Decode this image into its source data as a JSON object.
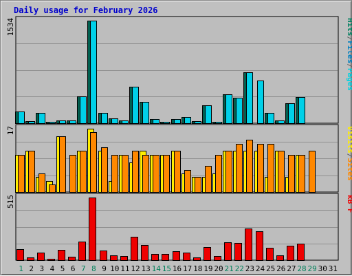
{
  "title": "Daily usage for February 2026",
  "colors": {
    "background": "#c0c0c0",
    "plot": "#bdbdbd",
    "grid": "#909090",
    "title": "#0000cc",
    "hits": "#00cccc",
    "files": "#00a0a0",
    "pages": "#006050",
    "visits": "#ffff00",
    "sites": "#ff8800",
    "kbf": "#ff0000",
    "weekend_label": "#00805a"
  },
  "chart_data": {
    "type": "bar",
    "days": [
      "1",
      "2",
      "3",
      "4",
      "5",
      "6",
      "7",
      "8",
      "9",
      "10",
      "11",
      "12",
      "13",
      "14",
      "15",
      "16",
      "17",
      "18",
      "19",
      "20",
      "21",
      "22",
      "23",
      "24",
      "25",
      "26",
      "27",
      "28",
      "29",
      "30",
      "31"
    ],
    "weekend_days": [
      "1",
      "7",
      "8",
      "14",
      "15",
      "21",
      "22",
      "28",
      "29"
    ],
    "panels": [
      {
        "id": "hits",
        "max_label": "1534",
        "ymax": 1534,
        "legend": [
          "Pages",
          "/",
          "Files",
          "/",
          "Hits"
        ],
        "legend_colors": [
          "#00d0e0",
          "#606060",
          "#0080c0",
          "#606060",
          "#008060"
        ],
        "series": [
          {
            "name": "Pages",
            "values": [
              180,
              30,
              150,
              10,
              40,
              40,
              400,
              1534,
              150,
              70,
              40,
              550,
              320,
              60,
              20,
              60,
              90,
              30,
              270,
              20,
              430,
              380,
              760,
              0,
              150,
              40,
              300,
              390,
              0,
              0,
              0
            ]
          },
          {
            "name": "Hits",
            "values": [
              180,
              30,
              150,
              10,
              40,
              40,
              400,
              1534,
              150,
              70,
              40,
              550,
              320,
              60,
              20,
              60,
              90,
              30,
              270,
              20,
              430,
              380,
              760,
              640,
              150,
              40,
              300,
              390,
              0,
              0,
              0
            ]
          }
        ]
      },
      {
        "id": "visits",
        "max_label": "17",
        "ymax": 17,
        "legend": [
          "Sites",
          "/",
          "Visits"
        ],
        "legend_colors": [
          "#ff8800",
          "#606060",
          "#ffee00"
        ],
        "series": [
          {
            "name": "Visits",
            "values": [
              10,
              11,
              4,
              3,
              15,
              0,
              11,
              17,
              11,
              3,
              10,
              8,
              11,
              10,
              10,
              11,
              5,
              4,
              4,
              5,
              11,
              11,
              11,
              11,
              4,
              11,
              4,
              10,
              0,
              0,
              0
            ]
          },
          {
            "name": "Sites",
            "values": [
              10,
              11,
              5,
              2,
              15,
              10,
              11,
              16,
              12,
              10,
              10,
              11,
              10,
              10,
              10,
              11,
              6,
              4,
              7,
              10,
              11,
              13,
              14,
              13,
              13,
              11,
              10,
              10,
              11,
              0,
              0
            ]
          }
        ]
      },
      {
        "id": "kbf",
        "max_label": "515",
        "ymax": 515,
        "legend": [
          "kB F"
        ],
        "legend_colors": [
          "#ee0000"
        ],
        "series": [
          {
            "name": "kB F",
            "values": [
              90,
              25,
              65,
              8,
              85,
              30,
              150,
              515,
              80,
              40,
              35,
              190,
              125,
              50,
              50,
              75,
              60,
              20,
              110,
              35,
              145,
              140,
              260,
              235,
              100,
              40,
              120,
              135,
              0,
              0,
              0
            ]
          }
        ]
      }
    ]
  }
}
